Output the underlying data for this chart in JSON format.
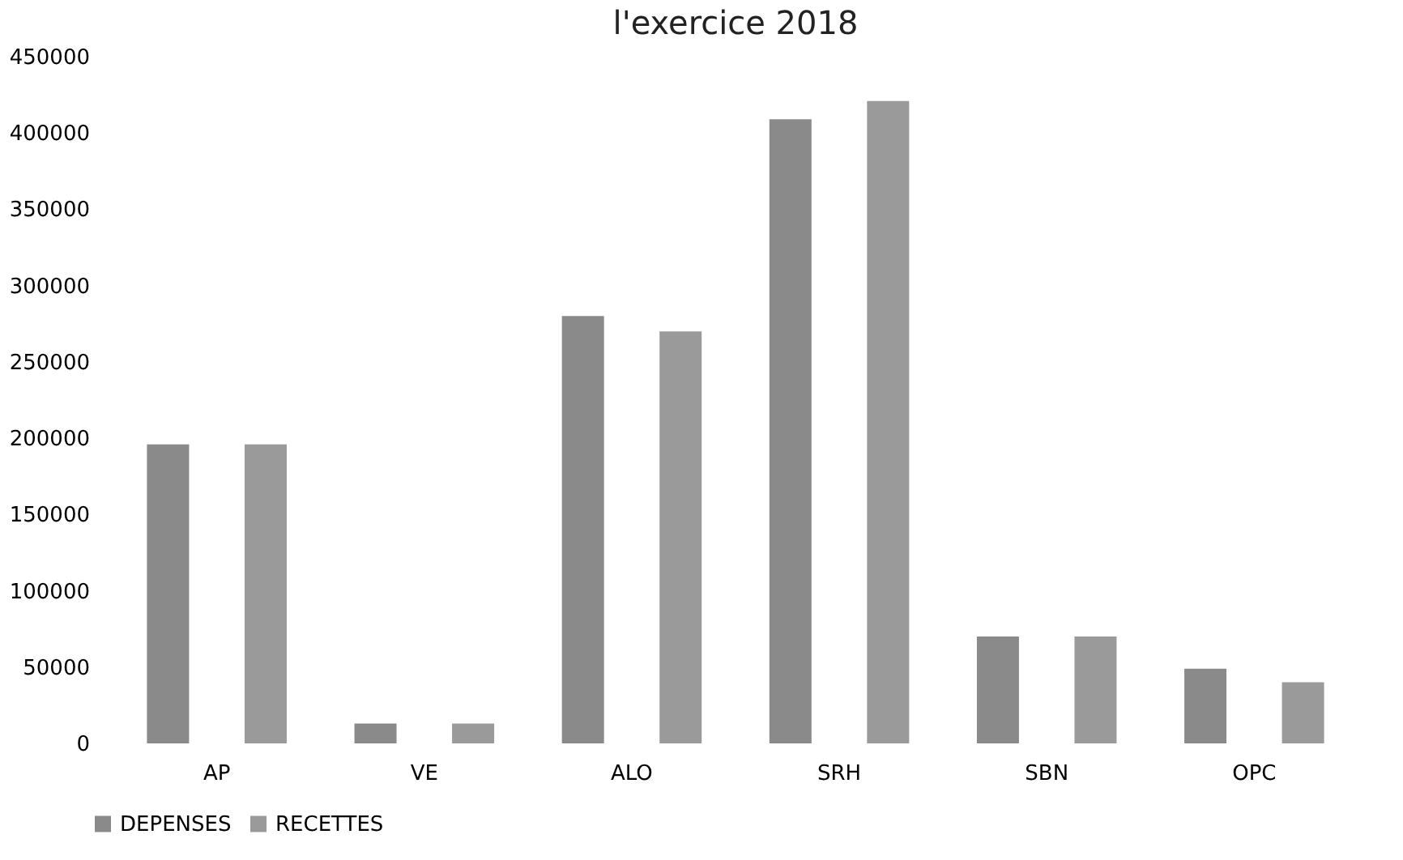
{
  "chart_data": {
    "type": "bar",
    "title": "l'exercice 2018",
    "categories": [
      "AP",
      "VE",
      "ALO",
      "SRH",
      "SBN",
      "OPC"
    ],
    "series": [
      {
        "name": "DEPENSES",
        "color": "#8a8a8a",
        "values": [
          196000,
          13000,
          280000,
          409000,
          70000,
          49000
        ]
      },
      {
        "name": "RECETTES",
        "color": "#9a9a9a",
        "values": [
          196000,
          13000,
          270000,
          421000,
          70000,
          40000
        ]
      }
    ],
    "ylim": [
      0,
      450000
    ],
    "yticks": [
      0,
      50000,
      100000,
      150000,
      200000,
      250000,
      300000,
      350000,
      400000,
      450000
    ],
    "grid": false,
    "legend": "bottom"
  }
}
